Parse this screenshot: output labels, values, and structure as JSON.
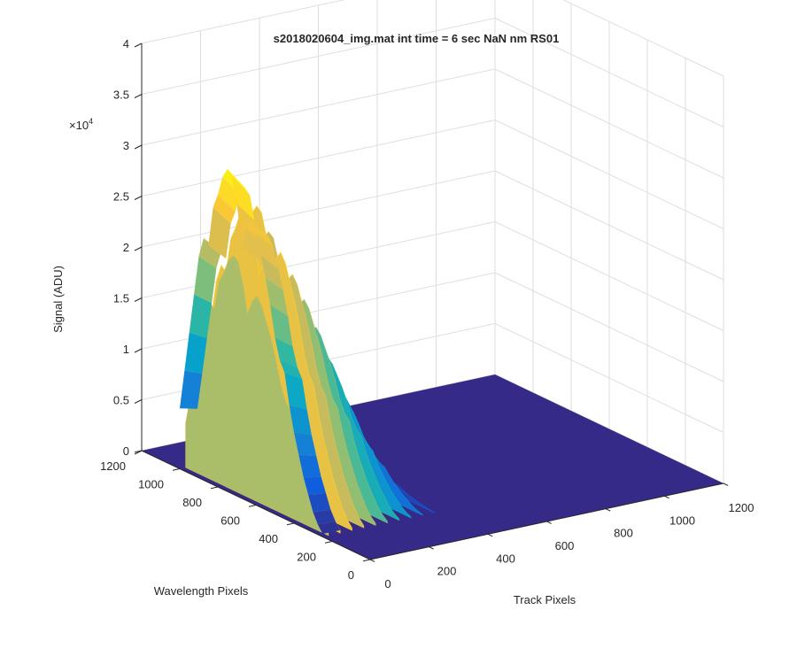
{
  "chart_data": {
    "type": "surface",
    "title": "s2018020604_img.mat int time = 6 sec  NaN nm RS01",
    "xlabel": "Track Pixels",
    "ylabel": "Wavelength Pixels",
    "zlabel": "Signal (ADU)",
    "xlim": [
      0,
      1200
    ],
    "ylim": [
      0,
      1200
    ],
    "zlim": [
      0,
      40000
    ],
    "z_exponent_label": "×10",
    "z_exponent_power": "4",
    "x_ticks": [
      "0",
      "200",
      "400",
      "600",
      "800",
      "1000",
      "1200"
    ],
    "y_ticks": [
      "0",
      "200",
      "400",
      "600",
      "800",
      "1000",
      "1200"
    ],
    "z_ticks": [
      "0",
      "0.5",
      "1",
      "1.5",
      "2",
      "2.5",
      "3",
      "3.5",
      "4"
    ],
    "grid": true,
    "colormap": "parula",
    "colormap_colors": [
      "#352a87",
      "#0f5cdd",
      "#1481d6",
      "#06a4ca",
      "#2eb7a4",
      "#87bf77",
      "#d1bb59",
      "#fec832",
      "#f9fb0e"
    ],
    "surface_floor_color": "#352a87",
    "signal_region": {
      "track_pixel_range": [
        0,
        400
      ],
      "wavelength_pixel_range": [
        0,
        1000
      ],
      "peak_signal": 32000,
      "peak_wavelength_pixel": 750
    },
    "crest_profile": [
      {
        "wavelength": 1000,
        "signal": 6000
      },
      {
        "wavelength": 975,
        "signal": 10000
      },
      {
        "wavelength": 950,
        "signal": 14000
      },
      {
        "wavelength": 925,
        "signal": 18000
      },
      {
        "wavelength": 900,
        "signal": 22000
      },
      {
        "wavelength": 875,
        "signal": 24000
      },
      {
        "wavelength": 850,
        "signal": 23500
      },
      {
        "wavelength": 825,
        "signal": 27500
      },
      {
        "wavelength": 800,
        "signal": 29000
      },
      {
        "wavelength": 775,
        "signal": 31000
      },
      {
        "wavelength": 750,
        "signal": 32000
      },
      {
        "wavelength": 725,
        "signal": 31500
      },
      {
        "wavelength": 700,
        "signal": 29000
      },
      {
        "wavelength": 675,
        "signal": 25000
      },
      {
        "wavelength": 650,
        "signal": 27000
      },
      {
        "wavelength": 625,
        "signal": 28000
      },
      {
        "wavelength": 600,
        "signal": 27000
      },
      {
        "wavelength": 575,
        "signal": 25000
      },
      {
        "wavelength": 550,
        "signal": 23000
      },
      {
        "wavelength": 525,
        "signal": 20500
      },
      {
        "wavelength": 500,
        "signal": 17500
      },
      {
        "wavelength": 475,
        "signal": 15500
      },
      {
        "wavelength": 450,
        "signal": 14500
      },
      {
        "wavelength": 425,
        "signal": 11500
      },
      {
        "wavelength": 400,
        "signal": 9000
      },
      {
        "wavelength": 375,
        "signal": 7000
      },
      {
        "wavelength": 350,
        "signal": 5000
      },
      {
        "wavelength": 325,
        "signal": 3500
      },
      {
        "wavelength": 300,
        "signal": 2000
      },
      {
        "wavelength": 275,
        "signal": 1000
      },
      {
        "wavelength": 250,
        "signal": 300
      }
    ]
  }
}
